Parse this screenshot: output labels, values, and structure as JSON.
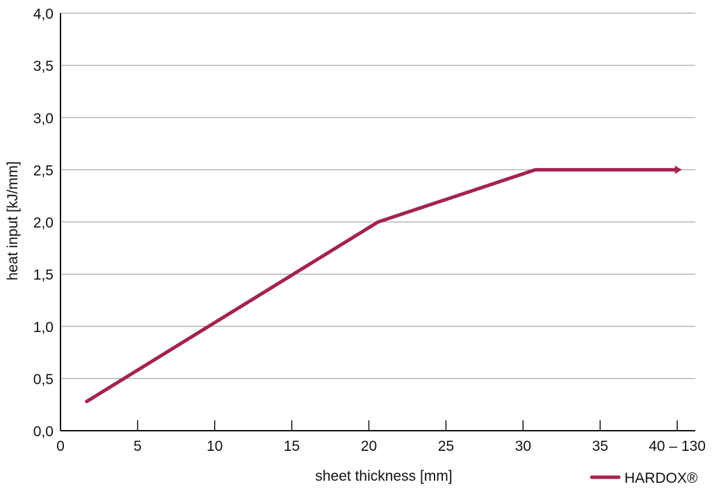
{
  "chart_data": {
    "type": "line",
    "title": "",
    "xlabel": "sheet thickness  [mm]",
    "ylabel": "heat input [kJ/mm]",
    "xlim": [
      0,
      40
    ],
    "ylim": [
      0,
      4
    ],
    "grid": true,
    "legend_position": "bottom-right",
    "x_ticks": [
      {
        "value": 0,
        "label": "0"
      },
      {
        "value": 5,
        "label": "5"
      },
      {
        "value": 10,
        "label": "10"
      },
      {
        "value": 15,
        "label": "15"
      },
      {
        "value": 20,
        "label": "20"
      },
      {
        "value": 25,
        "label": "25"
      },
      {
        "value": 30,
        "label": "30"
      },
      {
        "value": 35,
        "label": "35"
      },
      {
        "value": 40,
        "label": "40 – 130"
      }
    ],
    "y_ticks": [
      {
        "value": 0,
        "label": "0,0"
      },
      {
        "value": 0.5,
        "label": "0,5"
      },
      {
        "value": 1,
        "label": "1,0"
      },
      {
        "value": 1.5,
        "label": "1,5"
      },
      {
        "value": 2,
        "label": "2,0"
      },
      {
        "value": 2.5,
        "label": "2,5"
      },
      {
        "value": 3,
        "label": "3,0"
      },
      {
        "value": 3.5,
        "label": "3,5"
      },
      {
        "value": 4,
        "label": "4,0"
      }
    ],
    "series": [
      {
        "name": "HARDOX®",
        "color": "#a3244b",
        "x": [
          1.7,
          20.6,
          30.8,
          40.3
        ],
        "y": [
          0.28,
          2.0,
          2.5,
          2.5
        ],
        "end_arrow": true
      }
    ]
  }
}
